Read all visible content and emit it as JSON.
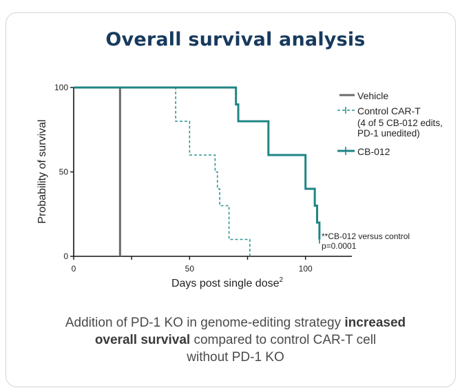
{
  "title": "Overall survival analysis",
  "caption": {
    "part1": "Addition of PD-1 KO in genome-editing strategy ",
    "bold1": "increased",
    "bold2": "overall survival",
    "part2": " compared to control CAR-T cell",
    "line3": "without PD-1 KO"
  },
  "colors": {
    "vehicle": "#6b6b6b",
    "control": "#2e9494",
    "cb012": "#1f8585",
    "title": "#173a5e"
  },
  "chart_data": {
    "type": "line",
    "subtype": "kaplan-meier step",
    "xlabel": "Days post single dose",
    "xlabel_sup": "2",
    "ylabel": "Probability of survival",
    "xlim": [
      0,
      120
    ],
    "ylim": [
      0,
      100
    ],
    "xticks": [
      "0",
      "50",
      "100"
    ],
    "yticks": [
      "0",
      "50",
      "100"
    ],
    "legend_position": "right",
    "annotation": [
      "**CB-012 versus control",
      "p=0.0001"
    ],
    "series": [
      {
        "name": "Vehicle",
        "style": "solid",
        "x": [
          0,
          20,
          20
        ],
        "y": [
          100,
          100,
          0
        ]
      },
      {
        "name": "Control CAR-T",
        "legend_lines": [
          "Control CAR-T",
          "(4 of 5 CB-012 edits,",
          "PD-1 unedited)"
        ],
        "style": "dashed",
        "x": [
          0,
          42,
          44,
          49,
          50,
          57,
          61,
          62,
          63,
          67,
          76,
          76
        ],
        "y": [
          100,
          100,
          80,
          80,
          60,
          60,
          50,
          40,
          30,
          10,
          10,
          0
        ]
      },
      {
        "name": "CB-012",
        "style": "solid",
        "x": [
          0,
          66,
          70,
          71,
          84,
          100,
          104,
          105,
          106
        ],
        "y": [
          100,
          100,
          90,
          80,
          60,
          40,
          30,
          20,
          10
        ],
        "censored": [
          [
            106,
            10
          ]
        ]
      }
    ]
  }
}
